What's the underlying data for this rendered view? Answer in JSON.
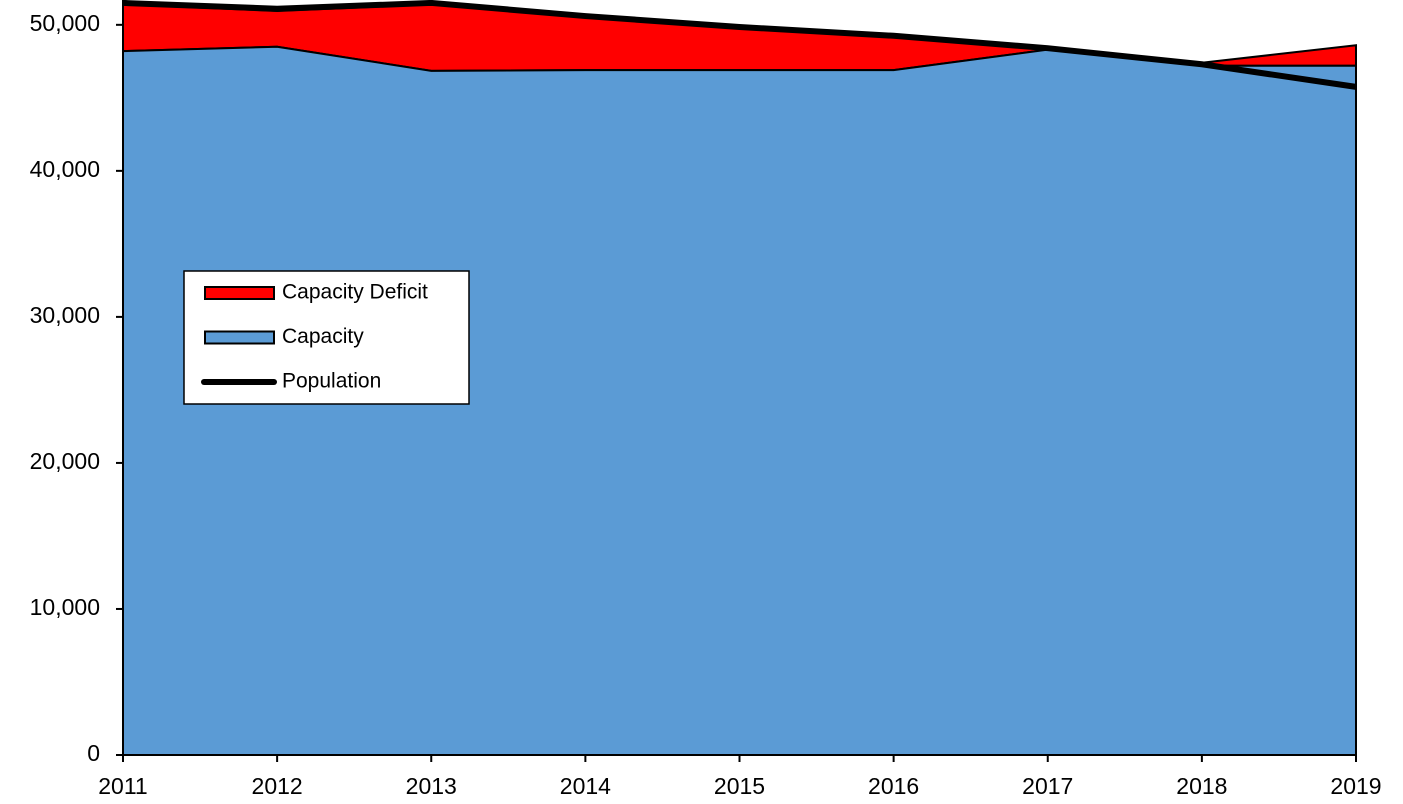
{
  "chart_data": {
    "type": "area",
    "x": [
      2011,
      2012,
      2013,
      2014,
      2015,
      2016,
      2017,
      2018,
      2019
    ],
    "xlim": [
      2011,
      2019
    ],
    "xticks": [
      2011,
      2012,
      2013,
      2014,
      2015,
      2016,
      2017,
      2018,
      2019
    ],
    "ylim": [
      0,
      51700
    ],
    "yticks": [
      0,
      {
        "value": 10000,
        "label": "10,000"
      },
      {
        "value": 20000,
        "label": "20,000"
      },
      {
        "value": 30000,
        "label": "30,000"
      },
      {
        "value": 40000,
        "label": "40,000"
      },
      {
        "value": 50000,
        "label": "50,000"
      }
    ],
    "series": [
      {
        "name": "Capacity Deficit",
        "color": "#ff0000",
        "kind": "stacked-area",
        "values": [
          3200,
          2450,
          4550,
          3700,
          2950,
          2350,
          0,
          200,
          1400
        ]
      },
      {
        "name": "Capacity",
        "color": "#5b9bd5",
        "kind": "stacked-area",
        "values": [
          48200,
          48500,
          46850,
          46900,
          46900,
          46900,
          48300,
          47200,
          47200
        ]
      },
      {
        "name": "Population",
        "color": "#000000",
        "kind": "line",
        "values": [
          51500,
          51100,
          51500,
          50600,
          49850,
          49250,
          48400,
          47300,
          45750
        ]
      }
    ]
  }
}
